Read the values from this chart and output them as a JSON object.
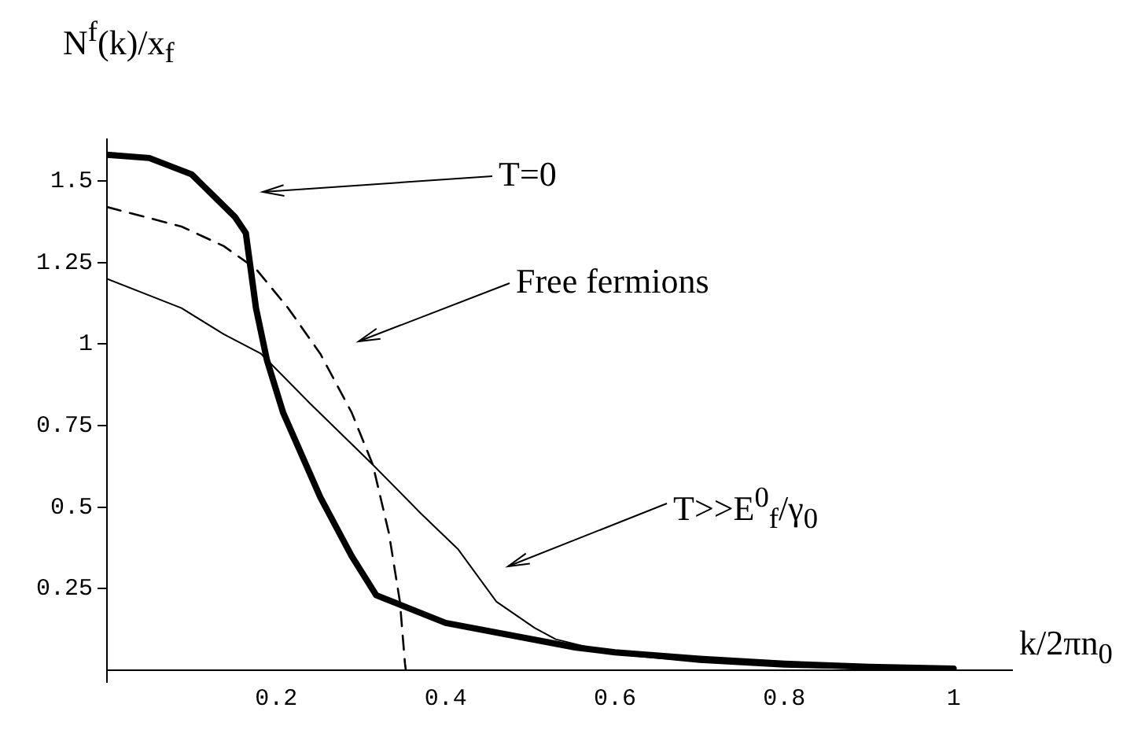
{
  "chart_data": {
    "type": "line",
    "xlabel": "k/2πn$_{0}$",
    "ylabel": "N$^{f}$(k)/x$_{f}$",
    "xlim": [
      0,
      1.07
    ],
    "ylim": [
      0,
      1.63
    ],
    "xticks": [
      0.2,
      0.4,
      0.6,
      0.8,
      1
    ],
    "yticks": [
      0.25,
      0.5,
      0.75,
      1,
      1.25,
      1.5
    ],
    "grid": false,
    "legend": false,
    "marker": "none",
    "series": [
      {
        "color": "#000000",
        "line_style": "solid",
        "x": [
          0,
          0.05,
          0.1,
          0.151,
          0.164,
          0.176,
          0.189,
          0.208,
          0.252,
          0.289,
          0.318,
          0.4,
          0.553,
          0.6,
          0.7,
          0.8,
          0.9,
          1
        ],
        "values": [
          1.58,
          1.57,
          1.52,
          1.39,
          1.34,
          1.11,
          0.95,
          0.79,
          0.53,
          0.35,
          0.23,
          0.145,
          0.07,
          0.055,
          0.035,
          0.02,
          0.01,
          0.005
        ]
      },
      {
        "color": "#000000",
        "line_style": "dashed",
        "x": [
          0,
          0.088,
          0.138,
          0.176,
          0.214,
          0.252,
          0.289,
          0.314,
          0.333,
          0.346,
          0.352,
          0.353
        ],
        "values": [
          1.42,
          1.36,
          1.3,
          1.23,
          1.11,
          0.97,
          0.79,
          0.63,
          0.42,
          0.21,
          0.02,
          0
        ]
      },
      {
        "color": "#000000",
        "line_style": "solid",
        "x": [
          0,
          0.088,
          0.138,
          0.182,
          0.239,
          0.314,
          0.371,
          0.415,
          0.46,
          0.505,
          0.53,
          0.6,
          0.7,
          0.8,
          1
        ],
        "values": [
          1.2,
          1.11,
          1.03,
          0.97,
          0.82,
          0.63,
          0.48,
          0.37,
          0.21,
          0.13,
          0.095,
          0.05,
          0.025,
          0.01,
          0.002
        ]
      }
    ],
    "annotations": [
      "T=0",
      "Free fermions",
      "T>>E$^{0}$$_{f}$/γ$_{0}$"
    ]
  }
}
